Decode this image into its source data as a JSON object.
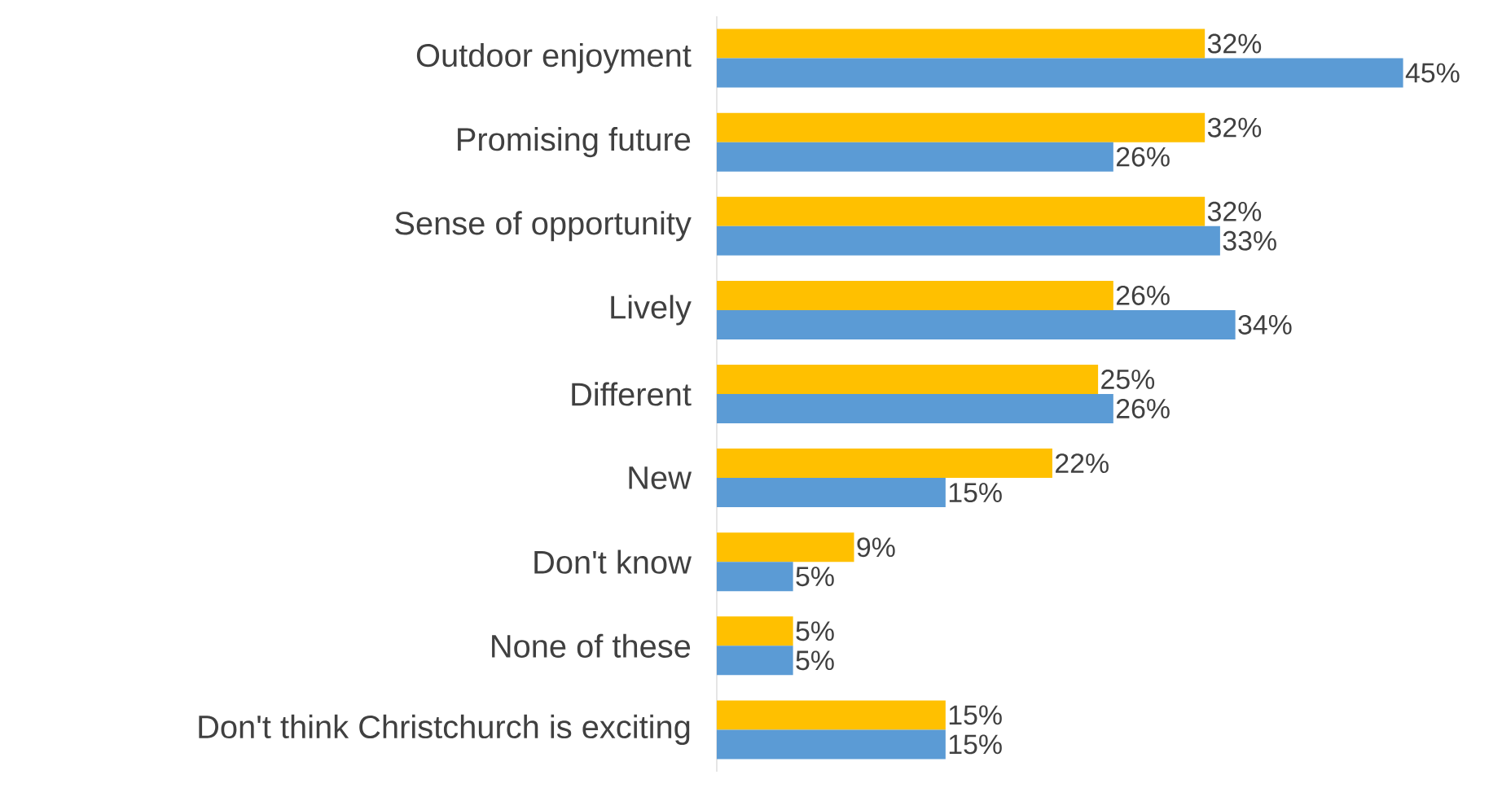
{
  "chart_data": {
    "type": "bar",
    "orientation": "horizontal",
    "categories": [
      "Outdoor enjoyment",
      "Promising future",
      "Sense of opportunity",
      "Lively",
      "Different",
      "New",
      "Don't know",
      "None of these",
      "Don't think Christchurch is exciting"
    ],
    "series": [
      {
        "color": "#ffc000",
        "values": [
          32,
          32,
          32,
          26,
          25,
          22,
          9,
          5,
          15
        ],
        "value_labels": [
          "32%",
          "32%",
          "32%",
          "26%",
          "25%",
          "22%",
          "9%",
          "5%",
          "15%"
        ]
      },
      {
        "color": "#5b9bd5",
        "values": [
          45,
          26,
          33,
          34,
          26,
          15,
          5,
          5,
          15
        ],
        "value_labels": [
          "45%",
          "26%",
          "33%",
          "34%",
          "26%",
          "15%",
          "5%",
          "5%",
          "15%"
        ]
      }
    ]
  }
}
